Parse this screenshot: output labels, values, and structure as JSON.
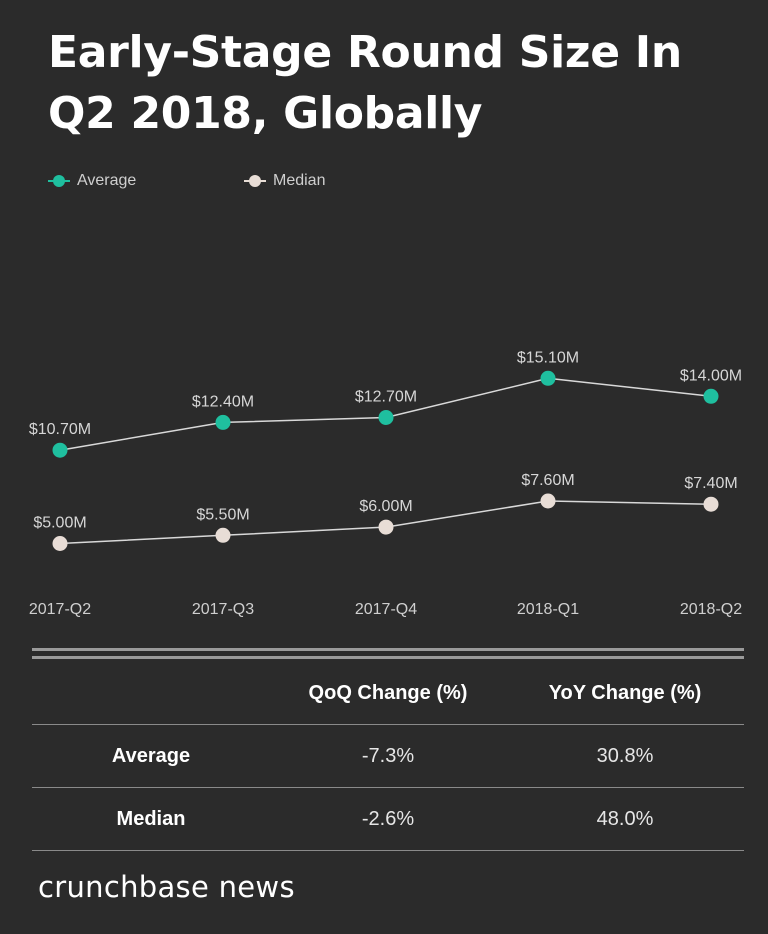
{
  "title": "Early-Stage Round Size In Q2 2018, Globally",
  "chart_data": {
    "type": "line",
    "title": "Early-Stage Round Size In Q2 2018, Globally",
    "categories": [
      "2017-Q2",
      "2017-Q3",
      "2017-Q4",
      "2018-Q1",
      "2018-Q2"
    ],
    "series": [
      {
        "name": "Average",
        "values": [
          10.7,
          12.4,
          12.7,
          15.1,
          14.0
        ],
        "labels": [
          "$10.70M",
          "$12.40M",
          "$12.70M",
          "$15.10M",
          "$14.00M"
        ],
        "color": "#1fbf9f"
      },
      {
        "name": "Median",
        "values": [
          5.0,
          5.5,
          6.0,
          7.6,
          7.4
        ],
        "labels": [
          "$5.00M",
          "$5.50M",
          "$6.00M",
          "$7.60M",
          "$7.40M"
        ],
        "color": "#e8ddd6"
      }
    ],
    "units": "USD millions",
    "legend_position": "top-left",
    "grid": false,
    "line_color": "#d9d9d9"
  },
  "table": {
    "headers": [
      "",
      "QoQ Change (%)",
      "YoY Change (%)"
    ],
    "rows": [
      [
        "Average",
        "-7.3%",
        "30.8%"
      ],
      [
        "Median",
        "-2.6%",
        "48.0%"
      ]
    ]
  },
  "brand": "crunchbase news"
}
